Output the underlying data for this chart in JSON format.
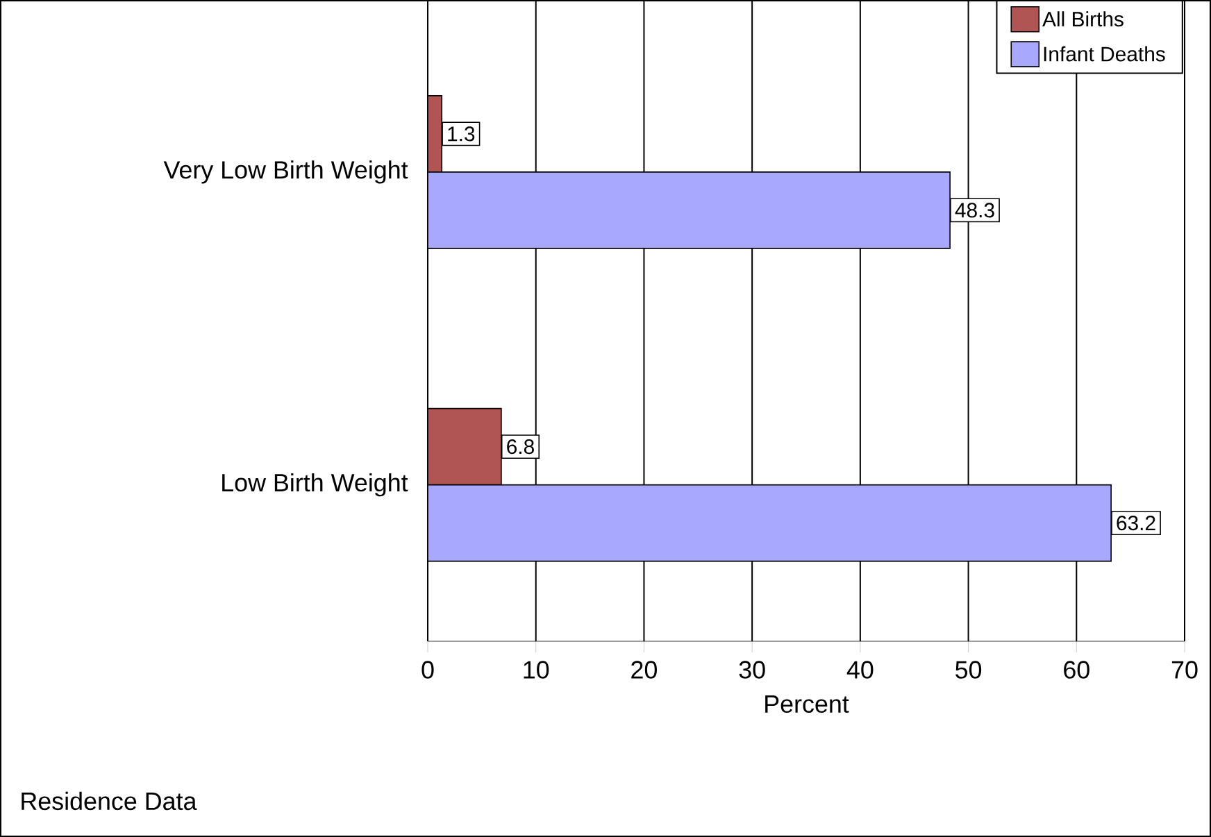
{
  "chart_data": {
    "type": "bar",
    "orientation": "horizontal",
    "categories": [
      "Very Low Birth Weight",
      "Low Birth Weight"
    ],
    "series": [
      {
        "name": "All Births",
        "color": "#b05454",
        "values": [
          1.3,
          6.8
        ]
      },
      {
        "name": "Infant Deaths",
        "color": "#a8a8ff",
        "values": [
          48.3,
          63.2
        ]
      }
    ],
    "xlabel": "Percent",
    "xlim": [
      0,
      70
    ],
    "xticks": [
      0,
      10,
      20,
      30,
      40,
      50,
      60,
      70
    ],
    "grid": "x",
    "legend": "top right",
    "data_labels": true,
    "annotations": [
      "Residence Data"
    ]
  }
}
